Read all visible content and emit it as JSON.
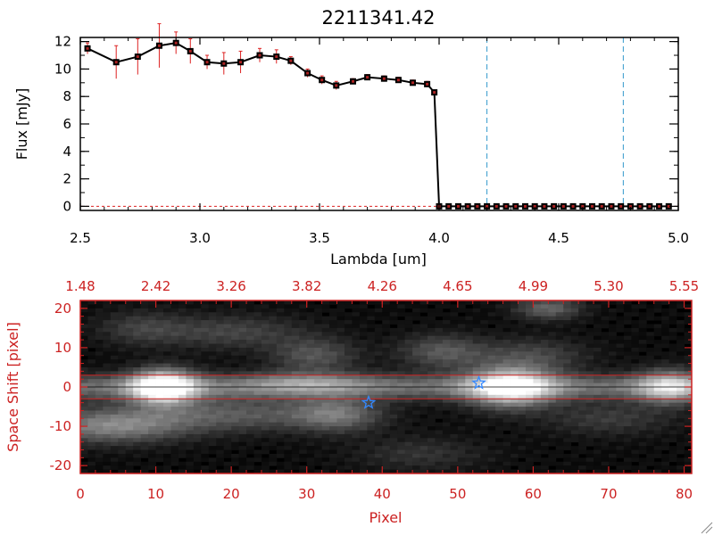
{
  "chart_data": [
    {
      "type": "line",
      "title": "2211341.42",
      "xlabel": "Lambda [um]",
      "ylabel": "Flux [mJy]",
      "xlim": [
        2.5,
        5.0
      ],
      "ylim": [
        -0.3,
        12.3
      ],
      "x_ticks": [
        2.5,
        3.0,
        3.5,
        4.0,
        4.5,
        5.0
      ],
      "x_tick_labels": [
        "2.5",
        "3.0",
        "3.5",
        "4.0",
        "4.5",
        "5.0"
      ],
      "y_ticks": [
        0,
        2,
        4,
        6,
        8,
        10,
        12
      ],
      "y_tick_labels": [
        "0",
        "2",
        "4",
        "6",
        "8",
        "10",
        "12"
      ],
      "vertical_lines": [
        4.2,
        4.77
      ],
      "horizontal_line": 0,
      "series": [
        {
          "name": "flux",
          "x": [
            2.53,
            2.65,
            2.74,
            2.83,
            2.9,
            2.96,
            3.03,
            3.1,
            3.17,
            3.25,
            3.32,
            3.38,
            3.45,
            3.51,
            3.57,
            3.64,
            3.7,
            3.77,
            3.83,
            3.89,
            3.95
          ],
          "y": [
            11.5,
            10.5,
            10.9,
            11.7,
            11.9,
            11.3,
            10.5,
            10.4,
            10.5,
            11.0,
            10.9,
            10.6,
            9.7,
            9.2,
            8.8,
            9.1,
            9.4,
            9.3,
            9.2,
            9.0,
            8.9
          ],
          "errors": [
            0.4,
            1.2,
            1.3,
            1.6,
            0.8,
            0.9,
            0.5,
            0.8,
            0.8,
            0.5,
            0.5,
            0.3,
            0.3,
            0.3,
            0.3,
            0.2,
            0.2,
            0.2,
            0.2,
            0.2,
            0.2
          ]
        },
        {
          "name": "flux-tail",
          "x": [
            3.98,
            4.0,
            4.04,
            4.08,
            4.12,
            4.16,
            4.2,
            4.24,
            4.28,
            4.32,
            4.36,
            4.4,
            4.44,
            4.48,
            4.52,
            4.56,
            4.6,
            4.64,
            4.68,
            4.72,
            4.76,
            4.8,
            4.84,
            4.88,
            4.92,
            4.96
          ],
          "y": [
            8.3,
            0,
            0,
            0,
            0,
            0,
            0,
            0,
            0,
            0,
            0,
            0,
            0,
            0,
            0,
            0,
            0,
            0,
            0,
            0,
            0,
            0,
            0,
            0,
            0,
            0
          ]
        }
      ]
    },
    {
      "type": "heatmap",
      "xlabel": "Pixel",
      "ylabel": "Space Shift [pixel]",
      "xlim": [
        0,
        81
      ],
      "ylim": [
        -22,
        22
      ],
      "x_ticks": [
        0,
        10,
        20,
        30,
        40,
        50,
        60,
        70,
        80
      ],
      "x_tick_labels": [
        "0",
        "10",
        "20",
        "30",
        "40",
        "50",
        "60",
        "70",
        "80"
      ],
      "y_ticks": [
        -20,
        -10,
        0,
        10,
        20
      ],
      "y_tick_labels": [
        "-20",
        "-10",
        "0",
        "10",
        "20"
      ],
      "top_axis_ticks": [
        0,
        10,
        20,
        30,
        40,
        50,
        60,
        70,
        80
      ],
      "top_axis_labels": [
        "1.48",
        "2.42",
        "3.26",
        "3.82",
        "4.26",
        "4.65",
        "4.99",
        "5.30",
        "5.55"
      ],
      "aperture_lines": [
        3,
        -3
      ],
      "trace_center": 0,
      "stars": [
        {
          "name": "star-1",
          "x": 38.2,
          "y": -4
        },
        {
          "name": "star-2",
          "x": 52.8,
          "y": 1
        }
      ],
      "blobs": [
        {
          "x": 11,
          "y": 0,
          "sx": 3,
          "sy": 3,
          "a": 1.0
        },
        {
          "x": 57,
          "y": 0,
          "sx": 4,
          "sy": 3.5,
          "a": 0.85
        },
        {
          "x": 78,
          "y": 0,
          "sx": 3,
          "sy": 3,
          "a": 0.55
        },
        {
          "x": 30,
          "y": 1,
          "sx": 6,
          "sy": 2,
          "a": 0.28
        },
        {
          "x": 4,
          "y": -10,
          "sx": 7,
          "sy": 3,
          "a": 0.45
        },
        {
          "x": 20,
          "y": -7,
          "sx": 10,
          "sy": 3,
          "a": 0.3
        },
        {
          "x": 34,
          "y": -7,
          "sx": 4,
          "sy": 3,
          "a": 0.35
        },
        {
          "x": 20,
          "y": 14,
          "sx": 7,
          "sy": 3,
          "a": 0.22
        },
        {
          "x": 31,
          "y": 8,
          "sx": 4,
          "sy": 3,
          "a": 0.28
        },
        {
          "x": 48,
          "y": 9,
          "sx": 4,
          "sy": 3,
          "a": 0.3
        },
        {
          "x": 62,
          "y": 20,
          "sx": 3,
          "sy": 2,
          "a": 0.35
        },
        {
          "x": 60,
          "y": 8,
          "sx": 5,
          "sy": 3,
          "a": 0.22
        },
        {
          "x": 70,
          "y": -8,
          "sx": 6,
          "sy": 3,
          "a": 0.18
        },
        {
          "x": 45,
          "y": -17,
          "sx": 6,
          "sy": 3,
          "a": 0.15
        },
        {
          "x": 8,
          "y": 15,
          "sx": 4,
          "sy": 3,
          "a": 0.18
        }
      ]
    }
  ],
  "colors": {
    "plot_line": "#000000",
    "error_bars": "#dd2222",
    "vertical_lines": "#3399cc",
    "lower_axis": "#cc2222",
    "aperture_lines": "#cc2222",
    "star": "#3388ff"
  }
}
